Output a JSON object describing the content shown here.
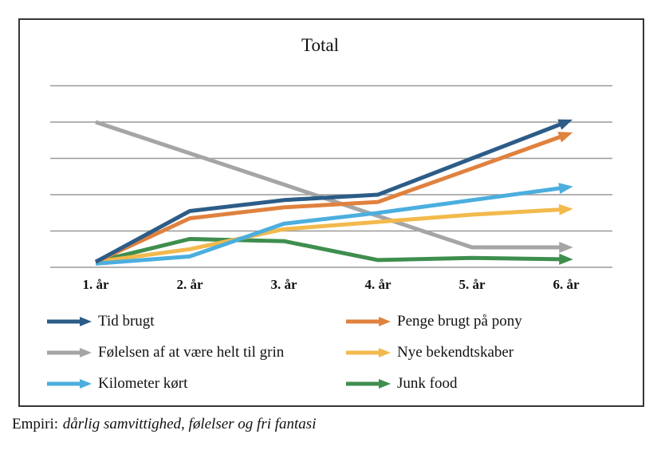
{
  "chart_data": {
    "type": "line",
    "title": "Total",
    "categories": [
      "1. år",
      "2. år",
      "3. år",
      "4. år",
      "5. år",
      "6. år"
    ],
    "series": [
      {
        "name": "Tid brugt",
        "color": "#2c5c87",
        "values": [
          0.15,
          1.55,
          1.85,
          2.0,
          3.0,
          4.0
        ]
      },
      {
        "name": "Penge brugt på pony",
        "color": "#e0813e",
        "values": [
          0.15,
          1.35,
          1.65,
          1.8,
          2.72,
          3.65
        ]
      },
      {
        "name": "Følelsen af at være helt til grin",
        "color": "#a5a5a5",
        "values": [
          4.0,
          3.14,
          2.28,
          1.41,
          0.55,
          0.55
        ]
      },
      {
        "name": "Nye bekendtskaber",
        "color": "#f2b94c",
        "values": [
          0.15,
          0.5,
          1.05,
          1.25,
          1.45,
          1.6
        ]
      },
      {
        "name": "Kilometer kørt",
        "color": "#4baede",
        "values": [
          0.1,
          0.3,
          1.2,
          1.5,
          1.85,
          2.2
        ]
      },
      {
        "name": "Junk food",
        "color": "#3e8e4e",
        "values": [
          0.15,
          0.78,
          0.72,
          0.2,
          0.26,
          0.22
        ]
      }
    ],
    "xlabel": "",
    "ylabel": "",
    "ylim": [
      0,
      5
    ],
    "y_axis_labels_shown": false,
    "grid": true,
    "gridline_count": 6,
    "gridline_color": "#999999",
    "frame_color": "#363636",
    "line_width": 5,
    "line_end": "arrow",
    "legend_position": "bottom-inside-two-columns",
    "draw_order": [
      2,
      5,
      3,
      4,
      1,
      0
    ]
  },
  "caption": {
    "prefix": "Empiri:",
    "italic_text": "dårlig samvittighed, følelser og fri fantasi"
  }
}
